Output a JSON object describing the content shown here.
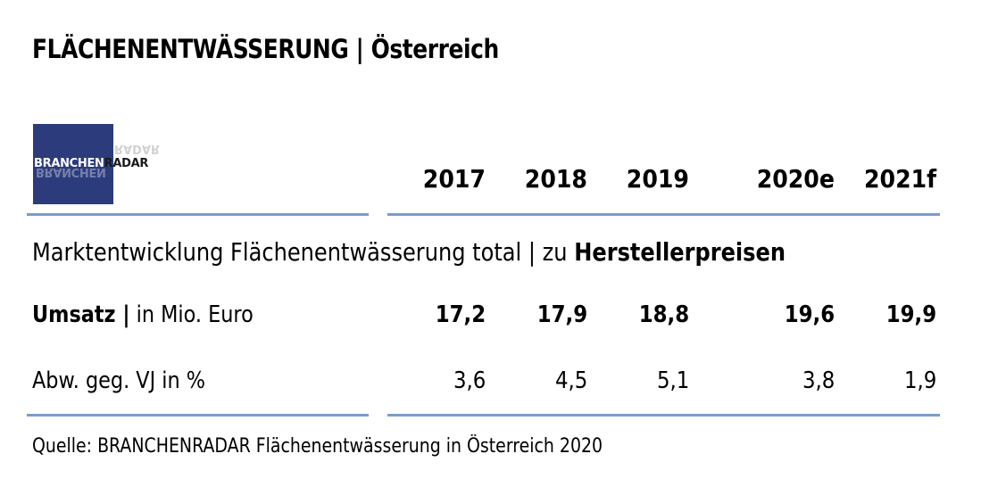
{
  "title": "FLÄCHENENTWÄSSERUNG | Österreich",
  "logo": {
    "part1": "BRANCHEN",
    "part2": "RADAR",
    "ghost": "BRANCHEN",
    "ghost2": "RADAR"
  },
  "subtitle": {
    "main": "Marktentwicklung Flächenentwässerung total | zu ",
    "bold": "Herstellerpreisen"
  },
  "rows": {
    "umsatz": {
      "bold": "Umsatz |",
      "rest": " in Mio. Euro"
    },
    "abw": {
      "label": "Abw. geg. VJ in %"
    }
  },
  "source": "Quelle: BRANCHENRADAR Flächenentwässerung in Österreich 2020",
  "chart_data": {
    "type": "table",
    "title": "FLÄCHENENTWÄSSERUNG | Österreich",
    "columns": [
      "2017",
      "2018",
      "2019",
      "2020e",
      "2021f"
    ],
    "rows": [
      {
        "label": "Umsatz | in Mio. Euro",
        "values": [
          "17,2",
          "17,9",
          "18,8",
          "19,6",
          "19,9"
        ]
      },
      {
        "label": "Abw. geg. VJ in %",
        "values": [
          "3,6",
          "4,5",
          "5,1",
          "3,8",
          "1,9"
        ]
      }
    ],
    "accent_color": "#7b9cc9",
    "logo_color": "#2c3b7c"
  }
}
